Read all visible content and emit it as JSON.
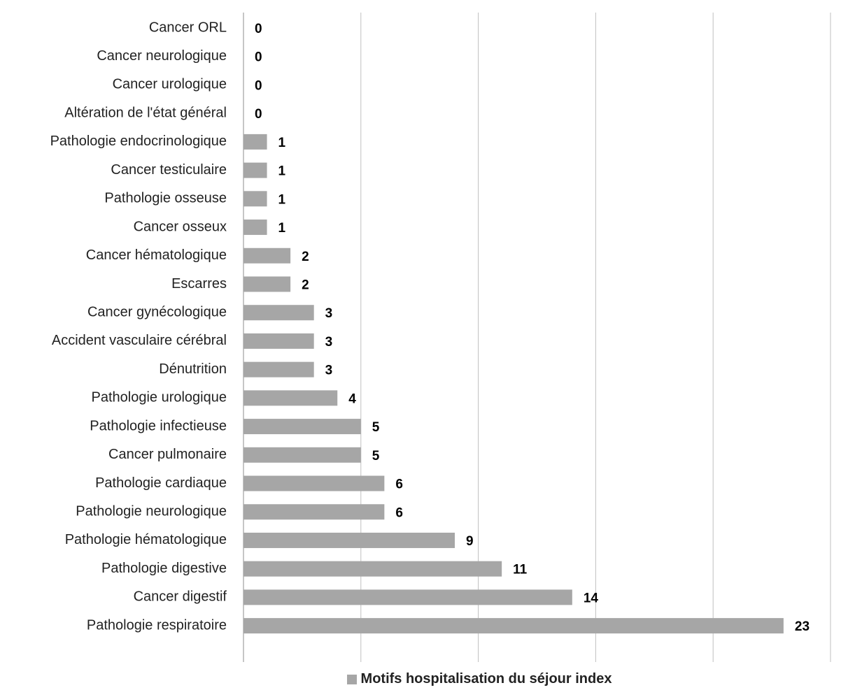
{
  "chart_data": {
    "type": "bar",
    "orientation": "horizontal",
    "categories": [
      "Cancer ORL",
      "Cancer neurologique",
      "Cancer urologique",
      "Altération de l'état général",
      "Pathologie endocrinologique",
      "Cancer testiculaire",
      "Pathologie osseuse",
      "Cancer osseux",
      "Cancer hématologique",
      "Escarres",
      "Cancer gynécologique",
      "Accident vasculaire cérébral",
      "Dénutrition",
      "Pathologie urologique",
      "Pathologie infectieuse",
      "Cancer pulmonaire",
      "Pathologie cardiaque",
      "Pathologie neurologique",
      "Pathologie hématologique",
      "Pathologie digestive",
      "Cancer digestif",
      "Pathologie respiratoire"
    ],
    "series": [
      {
        "name": "Motifs hospitalisation du séjour index",
        "values": [
          0,
          0,
          0,
          0,
          1,
          1,
          1,
          1,
          2,
          2,
          3,
          3,
          3,
          4,
          5,
          5,
          6,
          6,
          9,
          11,
          14,
          23
        ]
      }
    ],
    "xlim": [
      0,
      25
    ],
    "xticks": [
      "0",
      "5",
      "10",
      "15",
      "20",
      "25"
    ],
    "grid": "vertical",
    "legend": "bottom",
    "bar_color": "#a6a6a6",
    "gridline_color": "#bfbfbf"
  }
}
